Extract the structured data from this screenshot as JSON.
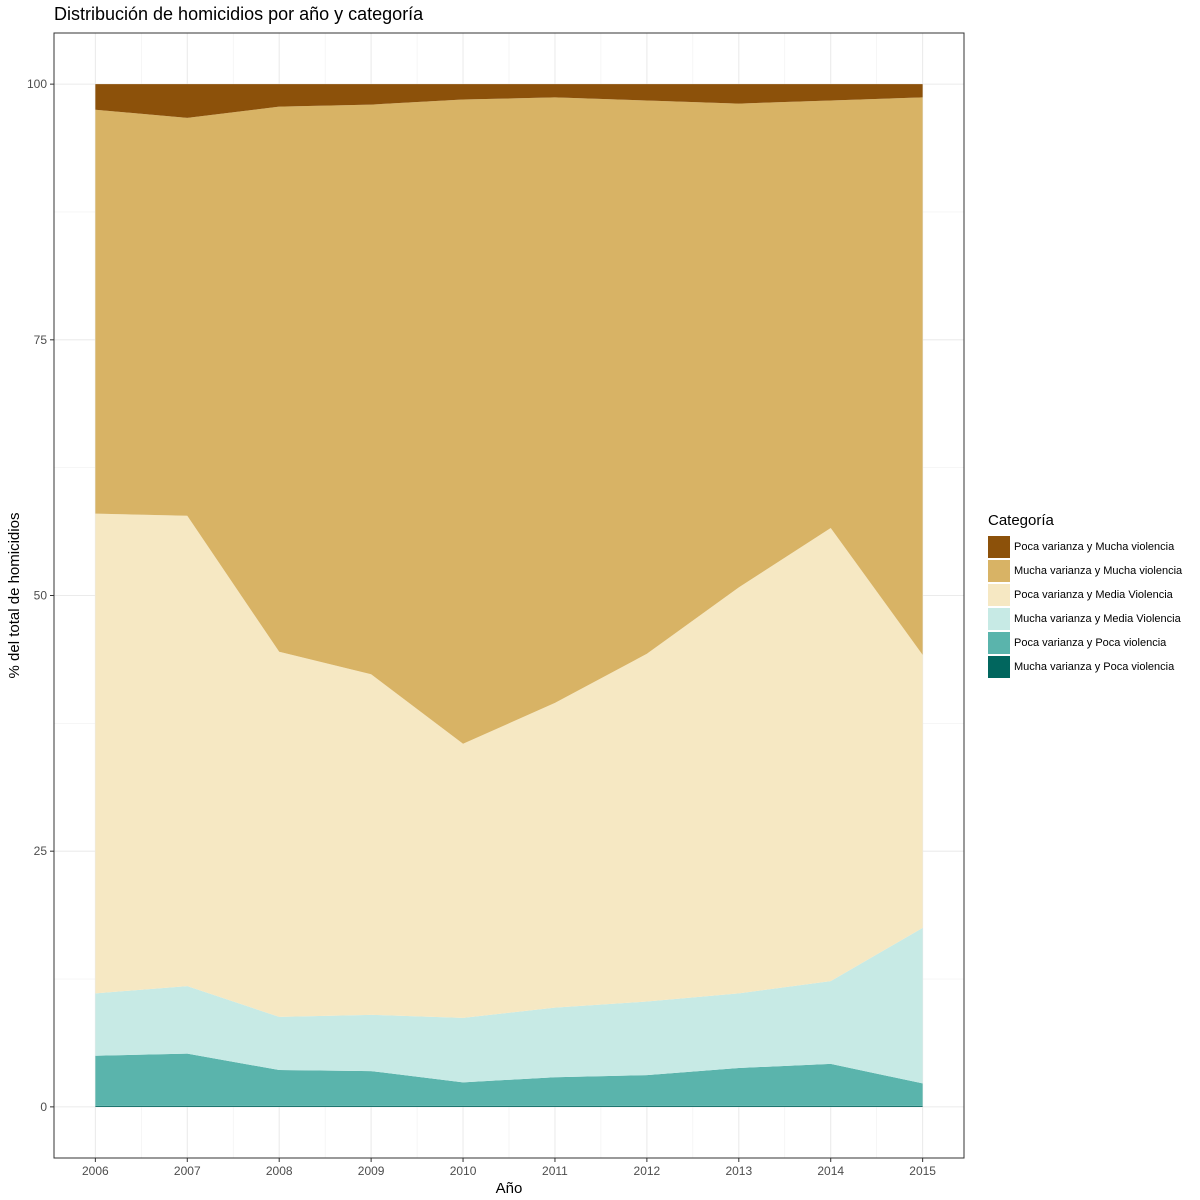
{
  "chart_data": {
    "type": "area",
    "stacked": true,
    "title": "Distribución de homicidios por año y categoría",
    "xlabel": "Año",
    "ylabel": "% del total de homicidios",
    "x": [
      2006,
      2007,
      2008,
      2009,
      2010,
      2011,
      2012,
      2013,
      2014,
      2015
    ],
    "x_tick_labels": [
      "2006",
      "2007",
      "2008",
      "2009",
      "2010",
      "2011",
      "2012",
      "2013",
      "2014",
      "2015"
    ],
    "xlim": [
      2005.55,
      2015.45
    ],
    "ylim": [
      -5,
      105
    ],
    "y_ticks": [
      0,
      25,
      50,
      75,
      100
    ],
    "y_tick_labels": [
      "0",
      "25",
      "50",
      "75",
      "100"
    ],
    "grid": true,
    "legend_position": "right",
    "legend_title": "Categoría",
    "series": [
      {
        "name": "Mucha varianza y Poca violencia",
        "color": "#01665e",
        "values": [
          0.1,
          0.1,
          0.1,
          0.1,
          0.1,
          0.1,
          0.1,
          0.1,
          0.1,
          0.1
        ]
      },
      {
        "name": "Poca varianza y Poca violencia",
        "color": "#5ab4ac",
        "values": [
          4.9,
          5.1,
          3.5,
          3.4,
          2.3,
          2.8,
          3.0,
          3.7,
          4.1,
          2.2
        ]
      },
      {
        "name": "Mucha varianza y Media Violencia",
        "color": "#c7eae5",
        "values": [
          6.1,
          6.6,
          5.2,
          5.5,
          6.3,
          6.8,
          7.2,
          7.3,
          8.1,
          15.2
        ]
      },
      {
        "name": "Poca varianza y Media Violencia",
        "color": "#f6e8c3",
        "values": [
          46.9,
          46.0,
          35.7,
          33.3,
          26.8,
          29.8,
          34.0,
          39.7,
          44.3,
          26.7
        ]
      },
      {
        "name": "Mucha varianza y Mucha violencia",
        "color": "#d8b365",
        "values": [
          39.5,
          38.9,
          53.3,
          55.7,
          63.0,
          59.2,
          54.1,
          47.3,
          41.8,
          54.5
        ]
      },
      {
        "name": "Poca varianza y Mucha violencia",
        "color": "#8c510a",
        "values": [
          2.5,
          3.3,
          2.2,
          2.0,
          1.5,
          1.3,
          1.6,
          1.9,
          1.6,
          1.3
        ]
      }
    ]
  }
}
